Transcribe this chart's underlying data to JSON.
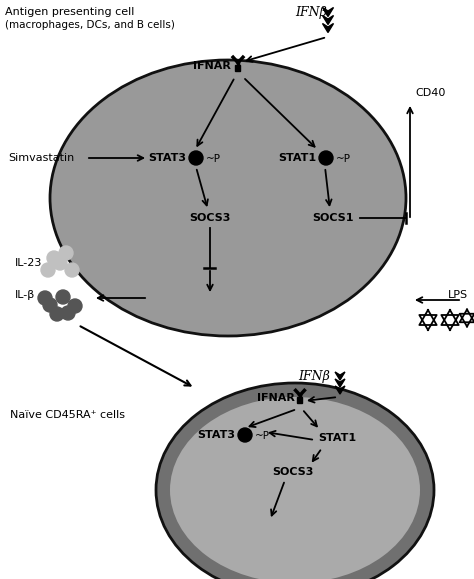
{
  "bg_color": "#ffffff",
  "cell1_color": "#999999",
  "cell1_edge_color": "#111111",
  "cell2_outer_color": "#707070",
  "cell2_inner_color": "#aaaaaa",
  "text_color": "#000000",
  "title1": "Antigen presenting cell",
  "title1b": "(macrophages, DCs, and B cells)",
  "ifn_label": "IFNβ",
  "ifnar_label": "IFNAR",
  "stat3_label": "STAT3",
  "stat1_label": "STAT1",
  "socs3_label": "SOCS3",
  "socs1_label": "SOCS1",
  "simvastatin_label": "Simvastatin",
  "cd40_label": "CD40",
  "lps_label": "LPS",
  "il23_label": "IL-23",
  "ilb_label": "IL-β",
  "naive_label": "Naïve CD45RA⁺ cells",
  "p_label": "~P",
  "figsize": [
    4.74,
    5.79
  ],
  "dpi": 100
}
